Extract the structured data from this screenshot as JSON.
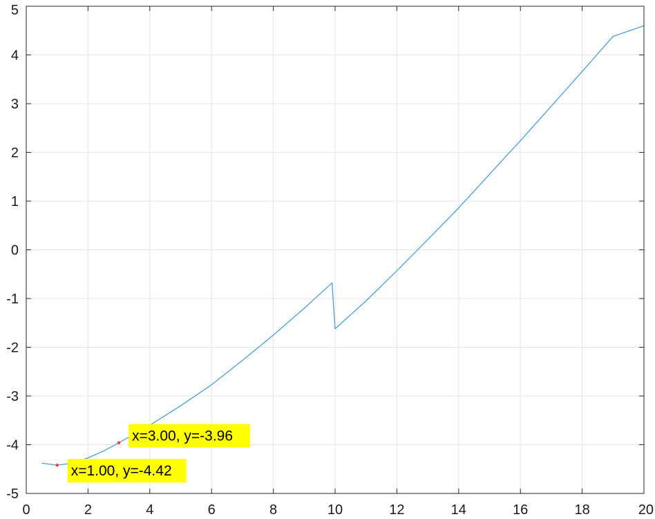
{
  "colors": {
    "series": "#4a9fd3",
    "grid": "#e4e4e4",
    "axis": "#262626",
    "datatip_bg": "#ffff00",
    "datatip_marker": "#ff3b30"
  },
  "chart_data": {
    "type": "line",
    "title": "",
    "xlabel": "",
    "ylabel": "",
    "xlim": [
      0,
      20
    ],
    "ylim": [
      -5,
      5
    ],
    "xticks": [
      0,
      2,
      4,
      6,
      8,
      10,
      12,
      14,
      16,
      18,
      20
    ],
    "yticks": [
      -5,
      -4,
      -3,
      -2,
      -1,
      0,
      1,
      2,
      3,
      4,
      5
    ],
    "xtick_labels": [
      "0",
      "2",
      "4",
      "6",
      "8",
      "10",
      "12",
      "14",
      "16",
      "18",
      "20"
    ],
    "ytick_labels": [
      "-5",
      "-4",
      "-3",
      "-2",
      "-1",
      "0",
      "1",
      "2",
      "3",
      "4",
      "5"
    ],
    "grid": true,
    "series": [
      {
        "x": [
          0.5,
          1.0,
          1.5,
          2.0,
          2.5,
          3.0,
          3.5,
          4.0,
          5.0,
          6.0,
          7.0,
          8.0,
          9.0,
          9.9,
          10.0,
          11.0,
          12.0,
          13.0,
          14.0,
          15.0,
          16.0,
          17.0,
          18.0,
          19.0,
          20.0
        ],
        "y": [
          -4.38,
          -4.42,
          -4.38,
          -4.27,
          -4.13,
          -3.96,
          -3.78,
          -3.6,
          -3.2,
          -2.77,
          -2.27,
          -1.75,
          -1.2,
          -0.68,
          -1.62,
          -1.05,
          -0.43,
          0.21,
          0.86,
          1.55,
          2.24,
          2.95,
          3.66,
          4.38,
          4.6
        ]
      }
    ],
    "annotations": [
      {
        "x": 1.0,
        "y": -4.42,
        "text": "x=1.00, y=-4.42"
      },
      {
        "x": 3.0,
        "y": -3.96,
        "text": "x=3.00, y=-3.96"
      }
    ]
  }
}
